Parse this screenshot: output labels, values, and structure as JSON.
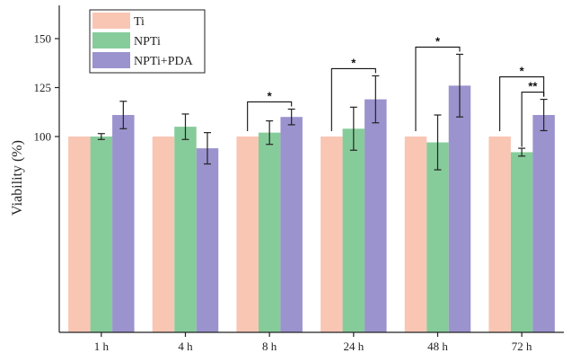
{
  "chart_data": {
    "type": "bar",
    "categories": [
      "1 h",
      "4 h",
      "8 h",
      "24 h",
      "48 h",
      "72 h"
    ],
    "series": [
      {
        "name": "Ti",
        "values": [
          100,
          100,
          100,
          100,
          100,
          100
        ],
        "errors": [
          0,
          0,
          0,
          0,
          0,
          0
        ],
        "color": "#f9c6b4"
      },
      {
        "name": "NPTi",
        "values": [
          100,
          105,
          102,
          104,
          97,
          92
        ],
        "errors": [
          1.5,
          6.5,
          6,
          11,
          14,
          2
        ],
        "color": "#86cc9a"
      },
      {
        "name": "NPTi+PDA",
        "values": [
          111,
          94,
          110,
          119,
          126,
          111
        ],
        "errors": [
          7,
          8,
          4,
          12,
          16,
          8
        ],
        "color": "#9b93ce"
      }
    ],
    "ylabel": "Viability (%)",
    "xlabel": "",
    "ylim": [
      0,
      150
    ],
    "yticks": [
      100,
      125,
      150
    ],
    "grid": false,
    "legend_position": "top-left",
    "significance": [
      {
        "category": "8 h",
        "from": "Ti",
        "to": "NPTi+PDA",
        "label": "*",
        "level": 0
      },
      {
        "category": "24 h",
        "from": "Ti",
        "to": "NPTi+PDA",
        "label": "*",
        "level": 0
      },
      {
        "category": "48 h",
        "from": "Ti",
        "to": "NPTi+PDA",
        "label": "*",
        "level": 0
      },
      {
        "category": "72 h",
        "from": "Ti",
        "to": "NPTi+PDA",
        "label": "*",
        "level": 1
      },
      {
        "category": "72 h",
        "from": "NPTi",
        "to": "NPTi+PDA",
        "label": "**",
        "level": 0
      }
    ]
  }
}
